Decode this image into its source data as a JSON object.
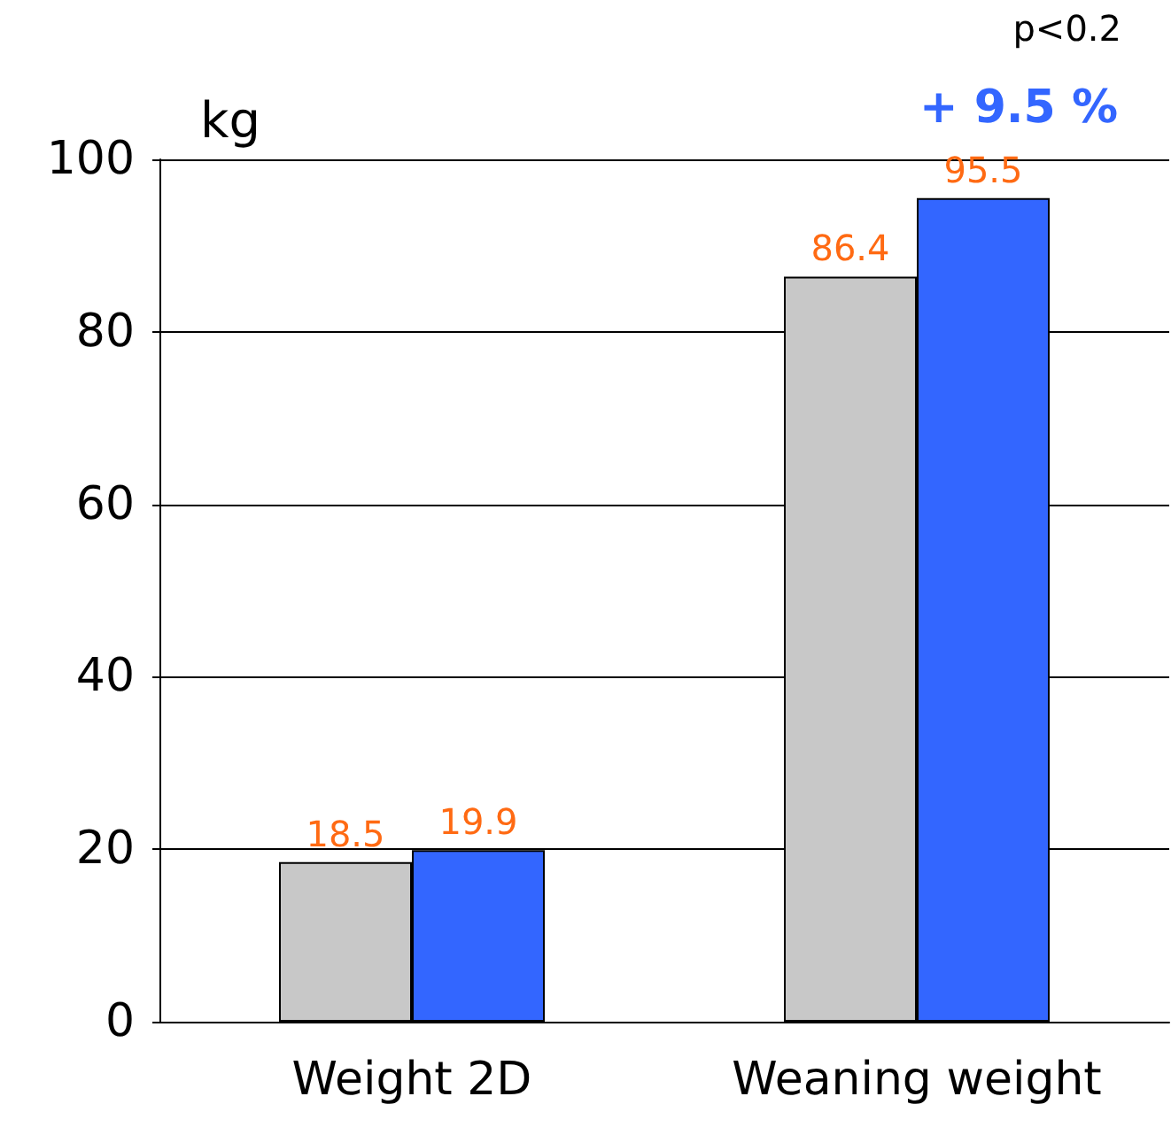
{
  "chart_data": {
    "type": "bar",
    "ylabel": "kg",
    "categories": [
      "Weight 2D",
      "Weaning weight"
    ],
    "series": [
      {
        "color": "#c8c8c8",
        "values": [
          18.5,
          86.4
        ]
      },
      {
        "color": "#3366ff",
        "values": [
          19.9,
          95.5
        ]
      }
    ],
    "ylim": [
      0,
      100
    ],
    "yticks": [
      0,
      20,
      40,
      60,
      80,
      100
    ],
    "grid": "y",
    "data_labels": true,
    "annotations": [
      "p<0.2",
      "+ 9.5 %"
    ]
  }
}
